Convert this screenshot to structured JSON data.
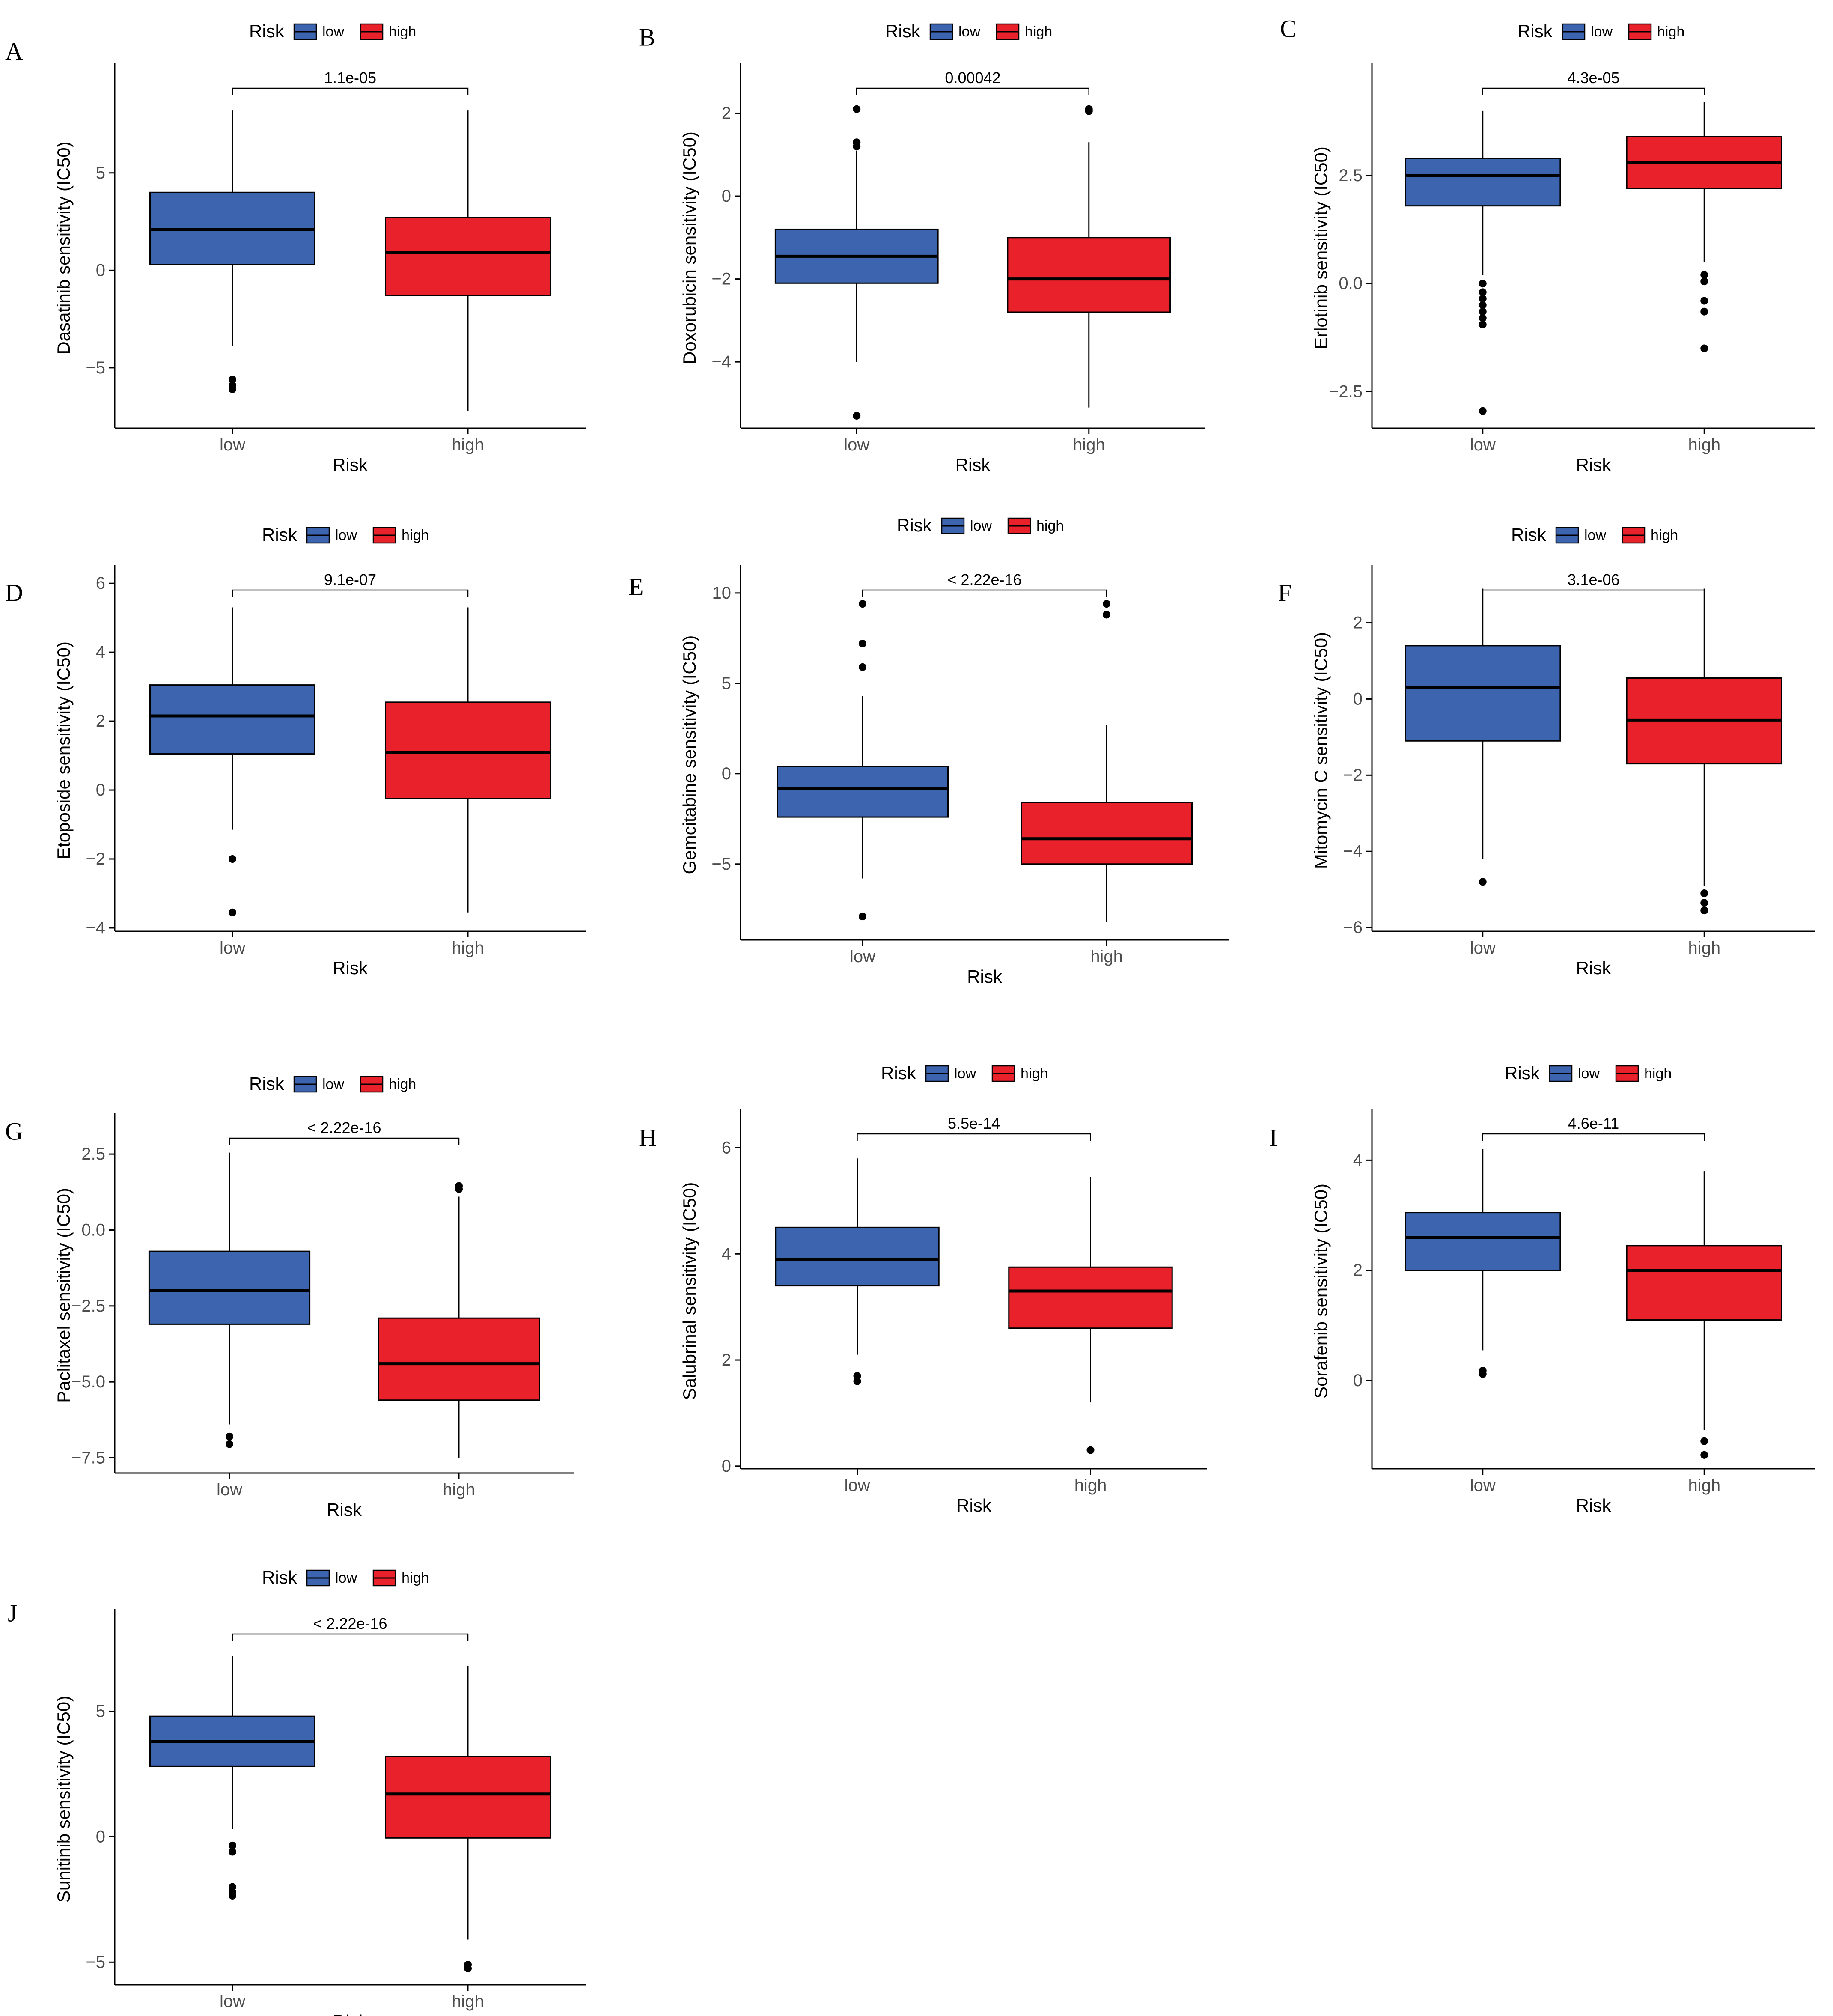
{
  "colors": {
    "low": "#3C64AF",
    "high": "#E8212A"
  },
  "legend": {
    "title": "Risk",
    "low_label": "low",
    "high_label": "high"
  },
  "chart_data": [
    {
      "type": "box",
      "panel": "A",
      "title": "",
      "ylabel": "Dasatinib sensitivity (IC50)",
      "xlabel": "Risk",
      "categories": [
        "low",
        "high"
      ],
      "pvalue": "1.1e-05",
      "ylim": [
        -8.1,
        10.4
      ],
      "yticks": [
        -5,
        0,
        5
      ],
      "boxes": [
        {
          "group": "low",
          "q1": 0.3,
          "median": 2.1,
          "q3": 4.0,
          "whisker_low": -3.9,
          "whisker_high": 8.2,
          "outliers": [
            -5.6,
            -5.9,
            -6.1
          ]
        },
        {
          "group": "high",
          "q1": -1.3,
          "median": 0.9,
          "q3": 2.7,
          "whisker_low": -7.2,
          "whisker_high": 8.2,
          "outliers": []
        }
      ]
    },
    {
      "type": "box",
      "panel": "B",
      "title": "",
      "ylabel": "Doxorubicin sensitivity (IC50)",
      "xlabel": "Risk",
      "categories": [
        "low",
        "high"
      ],
      "pvalue": "0.00042",
      "ylim": [
        -5.6,
        3.1
      ],
      "yticks": [
        -4,
        -2,
        0,
        2
      ],
      "boxes": [
        {
          "group": "low",
          "q1": -2.1,
          "median": -1.45,
          "q3": -0.8,
          "whisker_low": -4.0,
          "whisker_high": 1.1,
          "outliers": [
            2.1,
            1.3,
            1.2,
            -5.3
          ]
        },
        {
          "group": "high",
          "q1": -2.8,
          "median": -2.0,
          "q3": -1.0,
          "whisker_low": -5.1,
          "whisker_high": 1.3,
          "outliers": [
            2.1,
            2.05
          ]
        }
      ]
    },
    {
      "type": "box",
      "panel": "C",
      "title": "",
      "ylabel": "Erlotinib sensitivity (IC50)",
      "xlabel": "Risk",
      "categories": [
        "low",
        "high"
      ],
      "pvalue": "4.3e-05",
      "ylim": [
        -3.35,
        5.0
      ],
      "yticks": [
        -2.5,
        0.0,
        2.5
      ],
      "boxes": [
        {
          "group": "low",
          "q1": 1.8,
          "median": 2.5,
          "q3": 2.9,
          "whisker_low": 0.2,
          "whisker_high": 4.0,
          "outliers": [
            0.0,
            -0.2,
            -0.35,
            -0.5,
            -0.65,
            -0.8,
            -0.95,
            -2.95
          ]
        },
        {
          "group": "high",
          "q1": 2.2,
          "median": 2.8,
          "q3": 3.4,
          "whisker_low": 0.5,
          "whisker_high": 4.2,
          "outliers": [
            0.2,
            0.05,
            -0.4,
            -0.65,
            -1.5
          ]
        }
      ]
    },
    {
      "type": "box",
      "panel": "D",
      "title": "",
      "ylabel": "Etoposide sensitivity (IC50)",
      "xlabel": "Risk",
      "categories": [
        "low",
        "high"
      ],
      "pvalue": "9.1e-07",
      "ylim": [
        -4.1,
        6.4
      ],
      "yticks": [
        -4,
        -2,
        0,
        2,
        4,
        6
      ],
      "boxes": [
        {
          "group": "low",
          "q1": 1.05,
          "median": 2.15,
          "q3": 3.05,
          "whisker_low": -1.15,
          "whisker_high": 5.3,
          "outliers": [
            -2.0,
            -3.55
          ]
        },
        {
          "group": "high",
          "q1": -0.25,
          "median": 1.1,
          "q3": 2.55,
          "whisker_low": -3.55,
          "whisker_high": 5.3,
          "outliers": []
        }
      ]
    },
    {
      "type": "box",
      "panel": "E",
      "title": "",
      "ylabel": "Gemcitabine sensitivity (IC50)",
      "xlabel": "Risk",
      "categories": [
        "low",
        "high"
      ],
      "pvalue": "< 2.22e-16",
      "ylim": [
        -9.2,
        11.3
      ],
      "yticks": [
        -5,
        0,
        5,
        10
      ],
      "boxes": [
        {
          "group": "low",
          "q1": -2.4,
          "median": -0.8,
          "q3": 0.4,
          "whisker_low": -5.8,
          "whisker_high": 4.3,
          "outliers": [
            9.4,
            7.2,
            5.9,
            -7.9
          ]
        },
        {
          "group": "high",
          "q1": -5.0,
          "median": -3.6,
          "q3": -1.6,
          "whisker_low": -8.2,
          "whisker_high": 2.7,
          "outliers": [
            9.4,
            8.8
          ]
        }
      ]
    },
    {
      "type": "box",
      "panel": "F",
      "title": "",
      "ylabel": "Mitomycin C sensitivity (IC50)",
      "xlabel": "Risk",
      "categories": [
        "low",
        "high"
      ],
      "pvalue": "3.1e-06",
      "ylim": [
        -6.1,
        3.4
      ],
      "yticks": [
        -6,
        -4,
        -2,
        0,
        2
      ],
      "boxes": [
        {
          "group": "low",
          "q1": -1.1,
          "median": 0.3,
          "q3": 1.4,
          "whisker_low": -4.2,
          "whisker_high": 2.9,
          "outliers": [
            -4.8
          ]
        },
        {
          "group": "high",
          "q1": -1.7,
          "median": -0.55,
          "q3": 0.55,
          "whisker_low": -4.9,
          "whisker_high": 2.9,
          "outliers": [
            -5.1,
            -5.35,
            -5.55
          ]
        }
      ]
    },
    {
      "type": "box",
      "panel": "G",
      "title": "",
      "ylabel": "Paclitaxel sensitivity (IC50)",
      "xlabel": "Risk",
      "categories": [
        "low",
        "high"
      ],
      "pvalue": "< 2.22e-16",
      "ylim": [
        -8.0,
        3.7
      ],
      "yticks": [
        -7.5,
        -5.0,
        -2.5,
        0.0,
        2.5
      ],
      "boxes": [
        {
          "group": "low",
          "q1": -3.1,
          "median": -2.0,
          "q3": -0.7,
          "whisker_low": -6.4,
          "whisker_high": 2.55,
          "outliers": [
            -6.8,
            -7.05
          ]
        },
        {
          "group": "high",
          "q1": -5.6,
          "median": -4.4,
          "q3": -2.9,
          "whisker_low": -7.5,
          "whisker_high": 1.1,
          "outliers": [
            1.45,
            1.35
          ]
        }
      ]
    },
    {
      "type": "box",
      "panel": "H",
      "title": "",
      "ylabel": "Salubrinal sensitivity (IC50)",
      "xlabel": "Risk",
      "categories": [
        "low",
        "high"
      ],
      "pvalue": "5.5e-14",
      "ylim": [
        -0.05,
        6.65
      ],
      "yticks": [
        0,
        2,
        4,
        6
      ],
      "boxes": [
        {
          "group": "low",
          "q1": 3.4,
          "median": 3.9,
          "q3": 4.5,
          "whisker_low": 2.1,
          "whisker_high": 5.8,
          "outliers": [
            1.7,
            1.6
          ]
        },
        {
          "group": "high",
          "q1": 2.6,
          "median": 3.3,
          "q3": 3.75,
          "whisker_low": 1.2,
          "whisker_high": 5.45,
          "outliers": [
            0.3
          ]
        }
      ]
    },
    {
      "type": "box",
      "panel": "I",
      "title": "",
      "ylabel": "Sorafenib sensitivity (IC50)",
      "xlabel": "Risk",
      "categories": [
        "low",
        "high"
      ],
      "pvalue": "4.6e-11",
      "ylim": [
        -1.6,
        4.85
      ],
      "yticks": [
        0,
        2,
        4
      ],
      "boxes": [
        {
          "group": "low",
          "q1": 2.0,
          "median": 2.6,
          "q3": 3.05,
          "whisker_low": 0.55,
          "whisker_high": 4.2,
          "outliers": [
            0.18,
            0.12
          ]
        },
        {
          "group": "high",
          "q1": 1.1,
          "median": 2.0,
          "q3": 2.45,
          "whisker_low": -0.9,
          "whisker_high": 3.8,
          "outliers": [
            -1.1,
            -1.35
          ]
        }
      ]
    },
    {
      "type": "box",
      "panel": "J",
      "title": "",
      "ylabel": "Sunitinib sensitivity (IC50)",
      "xlabel": "Risk",
      "categories": [
        "low",
        "high"
      ],
      "pvalue": "< 2.22e-16",
      "ylim": [
        -5.9,
        8.9
      ],
      "yticks": [
        -5,
        0,
        5
      ],
      "boxes": [
        {
          "group": "low",
          "q1": 2.8,
          "median": 3.8,
          "q3": 4.8,
          "whisker_low": 0.3,
          "whisker_high": 7.2,
          "outliers": [
            -0.35,
            -0.6,
            -2.0,
            -2.2,
            -2.35
          ]
        },
        {
          "group": "high",
          "q1": -0.05,
          "median": 1.7,
          "q3": 3.2,
          "whisker_low": -4.1,
          "whisker_high": 6.8,
          "outliers": [
            -5.1,
            -5.25
          ]
        }
      ]
    }
  ]
}
